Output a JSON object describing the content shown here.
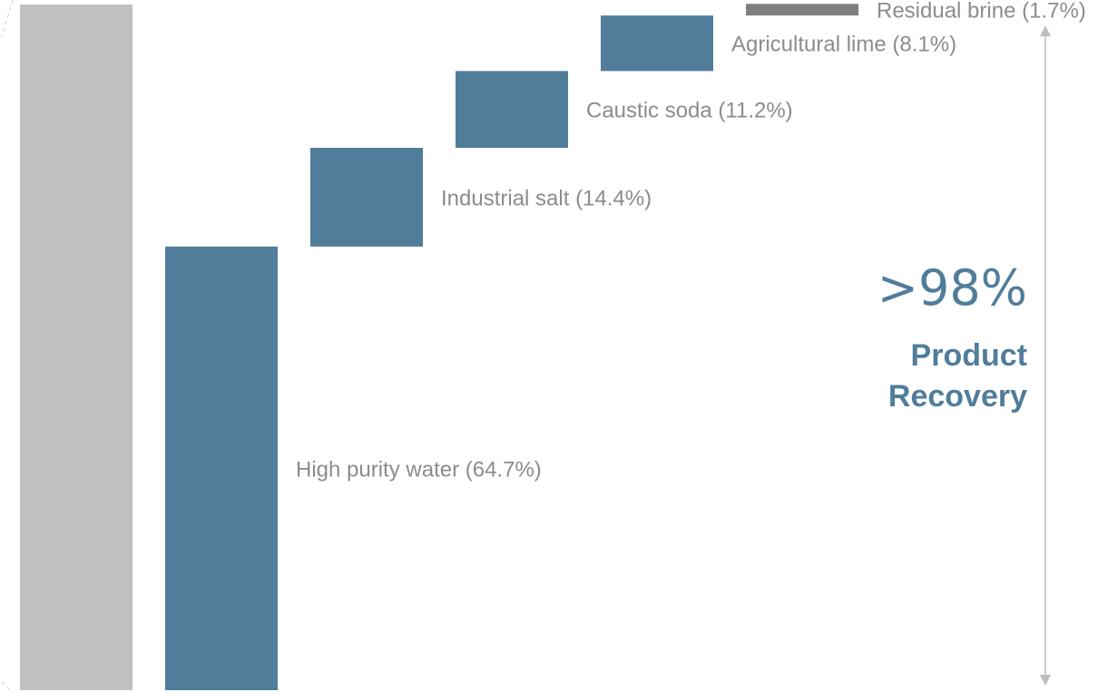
{
  "chart_data": {
    "type": "bar",
    "subtype": "waterfall",
    "total_value": 100,
    "categories": [
      "High purity water (64.7%)",
      "Industrial salt (14.4%)",
      "Caustic soda (11.2%)",
      "Agricultural lime (8.1%)",
      "Residual brine (1.7%)"
    ],
    "values": [
      64.7,
      14.4,
      11.2,
      8.1,
      1.7
    ],
    "bar_colors": [
      "#517d9b",
      "#517d9b",
      "#517d9b",
      "#517d9b",
      "#7f7f7f"
    ],
    "total_color": "#c0c0c0",
    "annotation": {
      "value": ">98%",
      "label_line1": "Product",
      "label_line2": "Recovery",
      "color": "#517d9b"
    },
    "ylim": [
      0,
      100
    ],
    "grid": false
  }
}
